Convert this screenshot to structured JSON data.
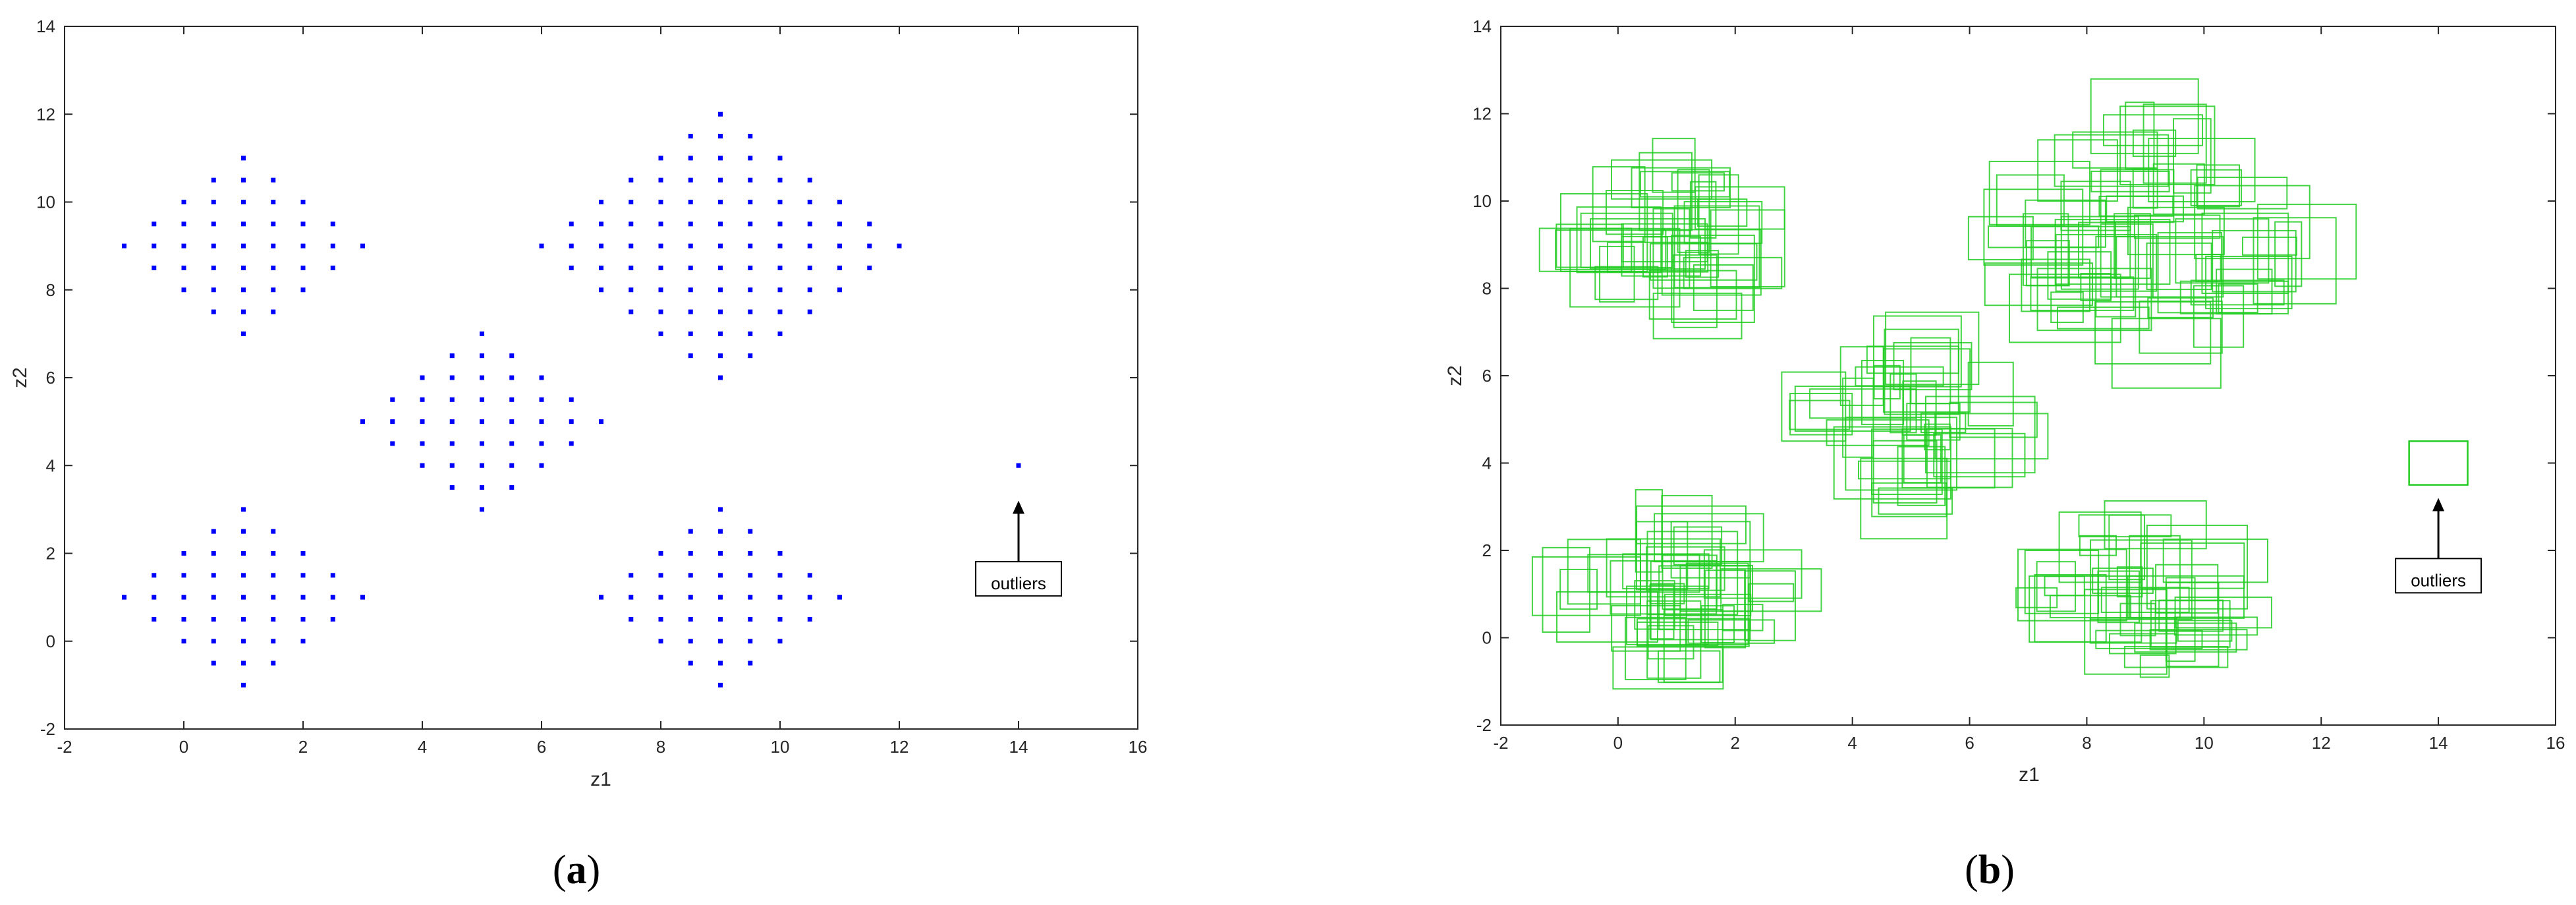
{
  "colors": {
    "points": "#0000ff",
    "boxes": "#22cc22",
    "axis": "#262626",
    "background": "#ffffff"
  },
  "chart_data": [
    {
      "type": "scatter",
      "panel_label": {
        "open": "(",
        "letter": "a",
        "close": ")"
      },
      "xlabel": "z1",
      "ylabel": "z2",
      "xlim": [
        -2,
        16
      ],
      "ylim": [
        -2,
        14
      ],
      "xticks": [
        -2,
        0,
        2,
        4,
        6,
        8,
        10,
        12,
        14,
        16
      ],
      "yticks": [
        -2,
        0,
        2,
        4,
        6,
        8,
        10,
        12,
        14
      ],
      "grid": false,
      "series": [
        {
          "clusters": [
            {
              "center": [
                1,
                9
              ],
              "radius": 2
            },
            {
              "center": [
                9,
                9
              ],
              "radius": 3
            },
            {
              "center": [
                5,
                5
              ],
              "radius": 2
            },
            {
              "center": [
                1,
                1
              ],
              "radius": 2
            },
            {
              "center": [
                9,
                1
              ],
              "radius": 2
            }
          ],
          "grid_step": 0.5
        },
        {
          "points": [
            [
              14,
              4
            ]
          ]
        }
      ],
      "annotation": {
        "text": "outliers",
        "arrow_to": [
          14,
          3.2
        ],
        "box_at": [
          14,
          1.3
        ]
      }
    },
    {
      "type": "scatter",
      "panel_label": {
        "open": "(",
        "letter": "b",
        "close": ")"
      },
      "xlabel": "z1",
      "ylabel": "z2",
      "xlim": [
        -2,
        16
      ],
      "ylim": [
        -2,
        14
      ],
      "xticks": [
        -2,
        0,
        2,
        4,
        6,
        8,
        10,
        12,
        14,
        16
      ],
      "yticks": [
        -2,
        0,
        2,
        4,
        6,
        8,
        10,
        12,
        14
      ],
      "grid": false,
      "series": [
        {
          "interval_boxes": {
            "clusters": [
              {
                "center": [
                  1,
                  9
                ],
                "radius": 2,
                "count": 40
              },
              {
                "center": [
                  9,
                  9
                ],
                "radius": 3,
                "count": 70
              },
              {
                "center": [
                  5,
                  5
                ],
                "radius": 2,
                "count": 40
              },
              {
                "center": [
                  1,
                  1
                ],
                "radius": 2,
                "count": 45
              },
              {
                "center": [
                  9,
                  1
                ],
                "radius": 2,
                "count": 40
              }
            ],
            "half_width_range": [
              0.2,
              1.0
            ]
          }
        },
        {
          "interval_boxes_outlier": [
            [
              13.5,
              14.5,
              3.5,
              4.5
            ]
          ]
        }
      ],
      "annotation": {
        "text": "outliers",
        "arrow_to": [
          14,
          3.2
        ],
        "box_at": [
          14,
          1.3
        ]
      }
    }
  ]
}
